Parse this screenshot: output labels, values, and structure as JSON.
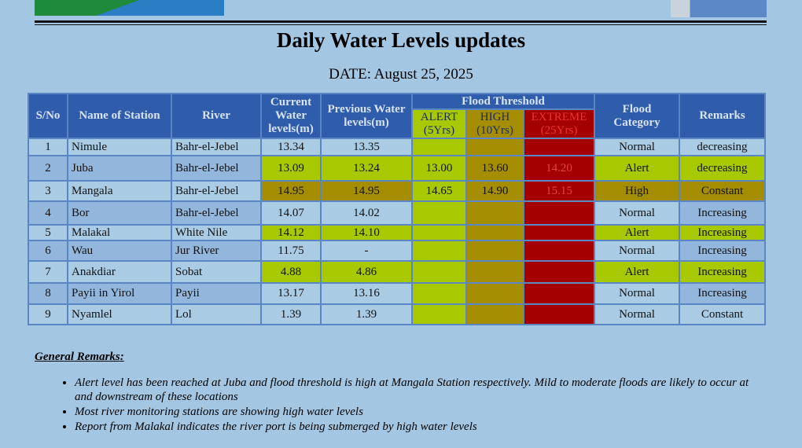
{
  "header": {
    "title": "Daily Water Levels updates",
    "date": "DATE: August 25, 2025"
  },
  "table": {
    "columns": [
      "S/No",
      "Name of Station",
      "River",
      "Current Water levels(m)",
      "Previous Water levels(m)",
      "Flood Threshold",
      "Flood Category",
      "Remarks"
    ],
    "threshold_columns": [
      "ALERT (5Yrs)",
      "HIGH (10Yrs)",
      "EXTREME (25Yrs)"
    ],
    "rows": [
      [
        "1",
        "Nimule",
        "Bahr-el-Jebel",
        "13.34",
        "13.35",
        null,
        null,
        null,
        "Normal",
        "decreasing"
      ],
      [
        "2",
        "Juba",
        "Bahr-el-Jebel",
        "13.09",
        "13.24",
        "13.00",
        "13.60",
        "14.20",
        "Alert",
        "decreasing"
      ],
      [
        "3",
        "Mangala",
        "Bahr-el-Jebel",
        "14.95",
        "14.95",
        "14.65",
        "14.90",
        "15.15",
        "High",
        "Constant"
      ],
      [
        "4",
        "Bor",
        "Bahr-el-Jebel",
        "14.07",
        "14.02",
        null,
        null,
        null,
        "Normal",
        "Increasing"
      ],
      [
        "5",
        "Malakal",
        "White Nile",
        "14.12",
        "14.10",
        null,
        null,
        null,
        "Alert",
        "Increasing"
      ],
      [
        "6",
        "Wau",
        "Jur River",
        "11.75",
        "-",
        null,
        null,
        null,
        "Normal",
        "Increasing"
      ],
      [
        "7",
        "Anakdiar",
        "Sobat",
        "4.88",
        "4.86",
        null,
        null,
        null,
        "Alert",
        "Increasing"
      ],
      [
        "8",
        "Payii in Yirol",
        "Payii",
        "13.17",
        "13.16",
        null,
        null,
        null,
        "Normal",
        "Increasing"
      ],
      [
        "9",
        "Nyamlel",
        "Lol",
        "1.39",
        "1.39",
        null,
        null,
        null,
        "Normal",
        "Constant"
      ]
    ]
  },
  "remarks": {
    "title": "General Remarks:",
    "items": [
      "Alert level has been reached at Juba and flood threshold is high at Mangala Station respectively. Mild to moderate floods are likely to occur at and downstream of these locations",
      "Most river monitoring stations are showing high water levels",
      "Report from Malakal indicates the river port is being submerged by high water levels"
    ]
  }
}
